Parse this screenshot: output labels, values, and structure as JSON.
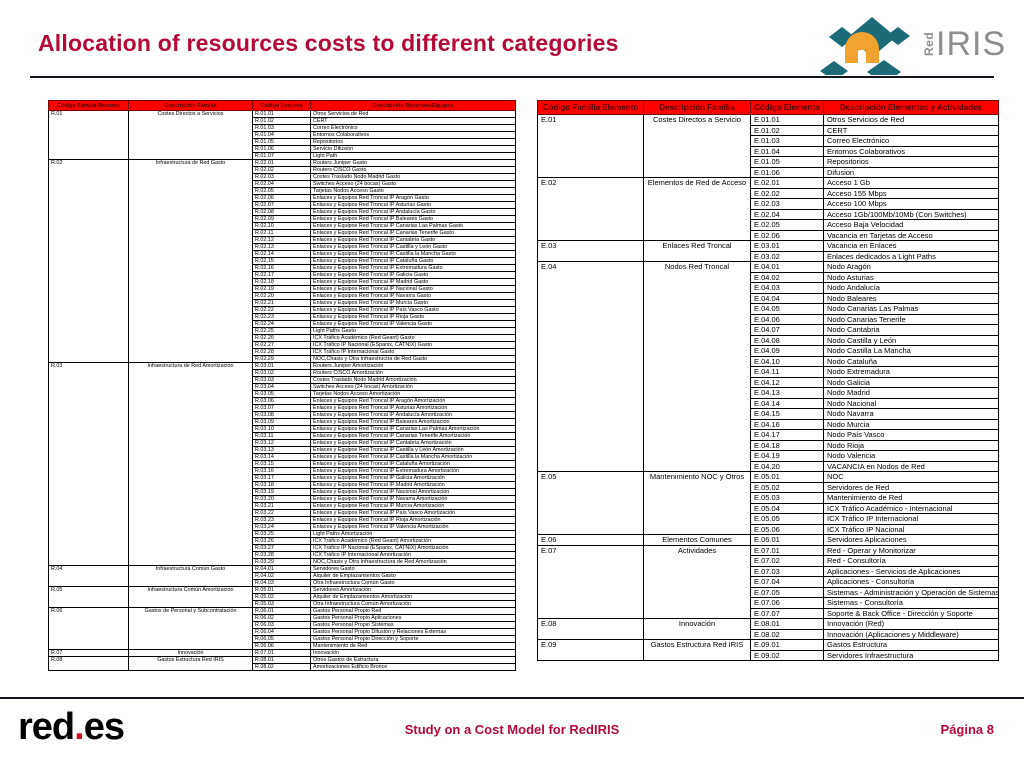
{
  "slide": {
    "title": "Allocation of resources costs to different categories",
    "footer_center": "Study on a Cost Model for RedIRIS",
    "footer_page": "Página 8",
    "colors": {
      "title": "#b50938",
      "table_header_bg": "#ff0000",
      "footer_text": "#b50938",
      "logo_teal": "#1d6a78",
      "logo_orange": "#f0a32f",
      "logo_gray": "#8e8e8e",
      "redes_dot": "#cc1122"
    }
  },
  "rediris_logo": {
    "red_label": "Red",
    "iris_label": "IRIS"
  },
  "redes_logo": {
    "before_dot": "red",
    "dot": ".",
    "after_dot": "es"
  },
  "left_table": {
    "headers": [
      "Código Familia Recurso",
      "Descripción Familia",
      "Código Recurso",
      "Descripción Recursos/Equipos"
    ],
    "groups": [
      {
        "code": "R.01",
        "family": "Costes Directos a Servicios",
        "rows": [
          [
            "R.01.01",
            "Otros Servicios de Red"
          ],
          [
            "R.01.02",
            "CERT"
          ],
          [
            "R.01.03",
            "Correo Electrónico"
          ],
          [
            "R.01.04",
            "Entornos Colaborativos"
          ],
          [
            "R.01.05",
            "Repositorios"
          ],
          [
            "R.01.06",
            "Servicio Difusión"
          ],
          [
            "R.01.07",
            "Light Path"
          ]
        ]
      },
      {
        "code": "R.02",
        "family": "Infraestructura de Red Gasto",
        "rows": [
          [
            "R.02.01",
            "Routers Juniper Gasto"
          ],
          [
            "R.02.02",
            "Routers CISCO Gasto"
          ],
          [
            "R.02.03",
            "Costes Traslado Nodo Madrid Gasto"
          ],
          [
            "R.02.04",
            "Switches Acceso (24 bocas) Gasto"
          ],
          [
            "R.02.05",
            "Tarjetas Nodos Acceso Gasto"
          ],
          [
            "R.02.06",
            "Enlaces y Equipos Red Troncal IP Aragón Gasto"
          ],
          [
            "R.02.07",
            "Enlaces y Equipos Red Troncal IP Asturias Gasto"
          ],
          [
            "R.02.08",
            "Enlaces y Equipos Red Troncal IP Andalucía Gasto"
          ],
          [
            "R.02.09",
            "Enlaces y Equipos Red Troncal IP Baleares Gasto"
          ],
          [
            "R.02.10",
            "Enlaces y Equipos Red Troncal IP Canarias Las Palmas Gasto"
          ],
          [
            "R.02.11",
            "Enlaces y Equipos Red Troncal IP Canarias Tenerife Gasto"
          ],
          [
            "R.02.12",
            "Enlaces y Equipos Red Troncal IP Cantabria Gasto"
          ],
          [
            "R.02.13",
            "Enlaces y Equipos Red Troncal IP Castilla y León Gasto"
          ],
          [
            "R.02.14",
            "Enlaces y Equipos Red Troncal IP Castilla la Mancha Gasto"
          ],
          [
            "R.02.15",
            "Enlaces y Equipos Red Troncal IP Cataluña Gasto"
          ],
          [
            "R.02.16",
            "Enlaces y Equipos Red Troncal IP Extremadura Gasto"
          ],
          [
            "R.02.17",
            "Enlaces y Equipos Red Troncal IP Galicia Gasto"
          ],
          [
            "R.02.18",
            "Enlaces y Equipos Red Troncal IP Madrid Gasto"
          ],
          [
            "R.02.19",
            "Enlaces y Equipos Red Troncal IP Nacional Gasto"
          ],
          [
            "R.02.20",
            "Enlaces y Equipos Red Troncal IP Navarra Gasto"
          ],
          [
            "R.02.21",
            "Enlaces y Equipos Red Troncal IP Murcia Gasto"
          ],
          [
            "R.02.22",
            "Enlaces y Equipos Red Troncal IP País Vasco Gasto"
          ],
          [
            "R.02.23",
            "Enlaces y Equipos Red Troncal IP Rioja Gasto"
          ],
          [
            "R.02.24",
            "Enlaces y Equipos Red Troncal IP Valencia Gasto"
          ],
          [
            "R.02.25",
            "Light Paths Gasto"
          ],
          [
            "R.02.26",
            "ICX Tráfico Académico (Red Geant) Gasto"
          ],
          [
            "R.02.27",
            "ICX Tráfico IP Nacional (ESpanix, CATNIX) Gasto"
          ],
          [
            "R.02.28",
            "ICX Tráfico IP Internacional Gasto"
          ],
          [
            "R.02.29",
            "NOC,Chasis y Otra Infraestructra de Red Gasto"
          ]
        ]
      },
      {
        "code": "R.03",
        "family": "Infraestructura de Red Amortización",
        "rows": [
          [
            "R.03.01",
            "Routers Juniper Amortización"
          ],
          [
            "R.03.02",
            "Routers CISCO Amortización"
          ],
          [
            "R.03.03",
            "Costes Traslado Nodo Madrid Amortización"
          ],
          [
            "R.03.04",
            "Switches Acceso (24 bocas) Amortización"
          ],
          [
            "R.03.05",
            "Tarjetas Nodos Acceso Amortización"
          ],
          [
            "R.03.06",
            "Enlaces y Equipos Red Troncal IP Aragón Amortización"
          ],
          [
            "R.03.07",
            "Enlaces y Equipos Red Troncal IP Asturias Amortización"
          ],
          [
            "R.03.08",
            "Enlaces y Equipos Red Troncal IP Andalucía Amortización"
          ],
          [
            "R.03.09",
            "Enlaces y Equipos Red Troncal IP Baleares Amortización"
          ],
          [
            "R.03.10",
            "Enlaces y Equipos Red Troncal IP Canarias Las Palmas Amortización"
          ],
          [
            "R.03.11",
            "Enlaces y Equipos Red Troncal IP Canarias Tenerife Amortización"
          ],
          [
            "R.03.12",
            "Enlaces y Equipos Red Troncal IP Cantabria Amortización"
          ],
          [
            "R.03.13",
            "Enlaces y Equipos Red Troncal IP Castilla y León Amortización"
          ],
          [
            "R.03.14",
            "Enlaces y Equipos Red Troncal IP Castilla la Mancha Amortización"
          ],
          [
            "R.03.15",
            "Enlaces y Equipos Red Troncal IP Cataluña Amortización"
          ],
          [
            "R.03.16",
            "Enlaces y Equipos Red Troncal IP Extremadura Amortización"
          ],
          [
            "R.03.17",
            "Enlaces y Equipos Red Troncal IP Galicia Amortización"
          ],
          [
            "R.03.18",
            "Enlaces y Equipos Red Troncal IP Madrid Amortización"
          ],
          [
            "R.03.19",
            "Enlaces y Equipos Red Troncal IP Nacional Amortización"
          ],
          [
            "R.03.20",
            "Enlaces y Equipos Red Troncal IP Navarra Amortización"
          ],
          [
            "R.03.21",
            "Enlaces y Equipos Red Troncal IP Murcia Amortización"
          ],
          [
            "R.03.22",
            "Enlaces y Equipos Red Troncal IP País Vasco Amortización"
          ],
          [
            "R.03.23",
            "Enlaces y Equipos Red Troncal IP Rioja Amortización"
          ],
          [
            "R.03.24",
            "Enlaces y Equipos Red Troncal IP Valencia Amortización"
          ],
          [
            "R.03.25",
            "Light Paths Amortización"
          ],
          [
            "R.03.26",
            "ICX Tráfico Académico (Red Geant) Amortización"
          ],
          [
            "R.03.27",
            "ICX Tráfico IP Nacional (ESpanix, CATNIX) Amortización"
          ],
          [
            "R.03.28",
            "ICX Tráfico IP Internacional Amortización"
          ],
          [
            "R.03.29",
            "NOC,Chasis y Otra Infraestructura de Red Amortización"
          ]
        ]
      },
      {
        "code": "R.04",
        "family": "Infraestructura Común Gasto",
        "rows": [
          [
            "R.04.01",
            "Servidores Gasto"
          ],
          [
            "R.04.02",
            "Alquiler de Emplazamientos Gasto"
          ],
          [
            "R.04.03",
            "Otra Infraestructura Común Gasto"
          ]
        ]
      },
      {
        "code": "R.05",
        "family": "Infraestructura Común Amortización",
        "rows": [
          [
            "R.05.01",
            "Servidores Amortización"
          ],
          [
            "R.05.02",
            "Alquiler de Emplazamientos Amortización"
          ],
          [
            "R.05.03",
            "Otra Infraestructura Común Amortización"
          ]
        ]
      },
      {
        "code": "R.06",
        "family": "Gastos de Personal y Subcontratación",
        "rows": [
          [
            "R.06.01",
            "Gastos Personal Propio Red"
          ],
          [
            "R.06.02",
            "Gastos Personal Propio Aplicaciones"
          ],
          [
            "R.06.03",
            "Gastos Personal Propio Sistemas"
          ],
          [
            "R.06.04",
            "Gastos Personal Propio Difusión y Relaciones Externas"
          ],
          [
            "R.06.05",
            "Gastos Personal Propio Dirección y Soporte"
          ],
          [
            "R.06.06",
            "Mantenimiento de Red"
          ]
        ]
      },
      {
        "code": "R.07",
        "family": "Innovación",
        "rows": [
          [
            "R.07.01",
            "Innovación"
          ]
        ]
      },
      {
        "code": "R.08",
        "family": "Gastos Estructura Red IRIS",
        "rows": [
          [
            "R.08.01",
            "Otros Gastos de Estructura"
          ],
          [
            "R.08.02",
            "Amortizaciones Edificio Bronce"
          ]
        ]
      }
    ]
  },
  "right_table": {
    "headers": [
      "Código Familia Elemento",
      "Descripción Familia",
      "Código Elemento",
      "Descripción Elementos y Actividades"
    ],
    "groups": [
      {
        "code": "E.01",
        "family": "Costes Directos a Servicio",
        "rows": [
          [
            "E.01.01",
            "Otros Servicios de Red"
          ],
          [
            "E.01.02",
            "CERT"
          ],
          [
            "E.01.03",
            "Correo Electrónico"
          ],
          [
            "E.01.04",
            "Entornos Colaborativos"
          ],
          [
            "E.01.05",
            "Repositorios"
          ],
          [
            "E.01.06",
            "Difusion"
          ]
        ]
      },
      {
        "code": "E.02",
        "family": "Elementos de Red de Acceso",
        "rows": [
          [
            "E.02.01",
            "Acceso 1 Gb"
          ],
          [
            "E.02.02",
            "Acceso 155 Mbps"
          ],
          [
            "E.02.03",
            "Acceso 100 Mbps"
          ],
          [
            "E.02.04",
            "Acceso 1Gb/100Mb/10Mb (Con Switches)"
          ],
          [
            "E.02.05",
            "Acceso Baja Velocidad"
          ],
          [
            "E.02.06",
            "Vacancia en Tarjetas de Acceso"
          ]
        ]
      },
      {
        "code": "E.03",
        "family": "Enlaces Red Troncal",
        "rows": [
          [
            "E.03.01",
            "Vacancia en Enlaces"
          ],
          [
            "E.03.02",
            "Enlaces dedicados a Light Paths"
          ]
        ]
      },
      {
        "code": "E.04",
        "family": "Nodos Red Troncal",
        "rows": [
          [
            "E.04.01",
            "Nodo Aragón"
          ],
          [
            "E.04.02",
            "Nodo Asturias"
          ],
          [
            "E.04.03",
            "Nodo Andalucía"
          ],
          [
            "E.04.04",
            "Nodo Baleares"
          ],
          [
            "E.04.05",
            "Nodo Canarias Las Palmas"
          ],
          [
            "E.04.06",
            "Nodo Canarias Tenerife"
          ],
          [
            "E.04.07",
            "Nodo Cantabria"
          ],
          [
            "E.04.08",
            "Nodo Castilla y León"
          ],
          [
            "E.04.09",
            "Nodo Castilla La Mancha"
          ],
          [
            "E.04.10",
            "Nodo Cataluña"
          ],
          [
            "E.04.11",
            "Nodo Extremadura"
          ],
          [
            "E.04.12",
            "Nodo Galicia"
          ],
          [
            "E.04.13",
            "Nodo Madrid"
          ],
          [
            "E.04.14",
            "Nodo Nacional"
          ],
          [
            "E.04.15",
            "Nodo Navarra"
          ],
          [
            "E.04.16",
            "Nodo Murcia"
          ],
          [
            "E.04.17",
            "Nodo País Vasco"
          ],
          [
            "E.04.18",
            "Nodo Rioja"
          ],
          [
            "E.04.19",
            "Nodo Valencia"
          ],
          [
            "E.04.20",
            "VACANCIA en Nodos de Red"
          ]
        ]
      },
      {
        "code": "E.05",
        "family": "Mantenimiento NOC y Otros",
        "rows": [
          [
            "E.05.01",
            "NOC"
          ],
          [
            "E.05.02",
            "Servidores de Red"
          ],
          [
            "E.05.03",
            "Mantenimiento de Red"
          ],
          [
            "E.05.04",
            "ICX Tráfico Académico - Internacional"
          ],
          [
            "E.05.05",
            "ICX Tráfico IP Internacional"
          ],
          [
            "E.05.06",
            "ICX Tráfico IP Nacional"
          ]
        ]
      },
      {
        "code": "E.06",
        "family": "Elementos Comunes",
        "rows": [
          [
            "E.06.01",
            "Servidores Aplicaciones"
          ]
        ]
      },
      {
        "code": "E.07",
        "family": "Actividades",
        "rows": [
          [
            "E.07.01",
            "Red - Operar y Monitorizar"
          ],
          [
            "E.07.02",
            "Red - Consultoría"
          ],
          [
            "E.07.03",
            "Aplicaciones - Servicios de Aplicaciones"
          ],
          [
            "E.07.04",
            "Aplicaciones - Consultoría"
          ],
          [
            "E.07.05",
            "Sistemas - Administración y Operación de Sistemas"
          ],
          [
            "E.07.06",
            "Sistemas - Consultoría"
          ],
          [
            "E.07.07",
            "Soporte & Back Office - Dirección y Soporte"
          ]
        ]
      },
      {
        "code": "E.08",
        "family": "Innovación",
        "rows": [
          [
            "E.08.01",
            "Innovación (Red)"
          ],
          [
            "E.08.02",
            "Innovación (Aplicaciones y Middleware)"
          ]
        ]
      },
      {
        "code": "E.09",
        "family": "Gastos Estructura Red IRIS",
        "rows": [
          [
            "E.09.01",
            "Gastos Estructura"
          ],
          [
            "E.09.02",
            "Servidores Infraestructura"
          ]
        ]
      }
    ]
  }
}
